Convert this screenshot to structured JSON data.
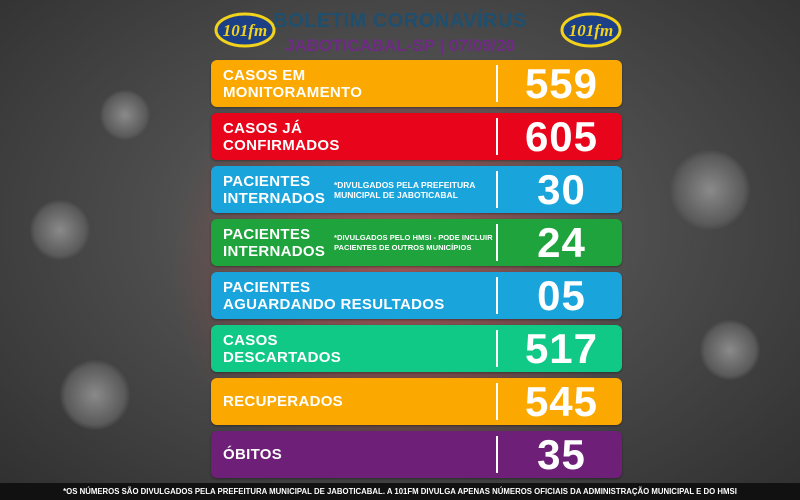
{
  "header": {
    "title": "BOLETIM CORONAVÍRUS",
    "subtitle": "JABOTICABAL-SP | 07/09/20",
    "logo_text": "101fm"
  },
  "colors": {
    "orange": "#fba800",
    "red": "#e8051b",
    "blue": "#1aa4dc",
    "green": "#1fa33c",
    "teal": "#11c987",
    "purple": "#6e1f77"
  },
  "panels": [
    {
      "label": "CASOS EM\nMONITORAMENTO",
      "note": "",
      "value": "559",
      "color": "#fba800"
    },
    {
      "label": "CASOS JÁ\nCONFIRMADOS",
      "note": "",
      "value": "605",
      "color": "#e8051b"
    },
    {
      "label": "PACIENTES\nINTERNADOS",
      "note": "*DIVULGADOS PELA PREFEITURA\nMUNICIPAL DE JABOTICABAL",
      "value": "30",
      "color": "#1aa4dc"
    },
    {
      "label": "PACIENTES\nINTERNADOS",
      "note": "*DIVULGADOS PELO HMSI - PODE INCLUIR\nPACIENTES DE OUTROS MUNICÍPIOS",
      "value": "24",
      "color": "#1fa33c"
    },
    {
      "label": "PACIENTES\nAGUARDANDO RESULTADOS",
      "note": "",
      "value": "05",
      "color": "#1aa4dc"
    },
    {
      "label": "CASOS\nDESCARTADOS",
      "note": "",
      "value": "517",
      "color": "#11c987"
    },
    {
      "label": "RECUPERADOS",
      "note": "",
      "value": "545",
      "color": "#fba800"
    },
    {
      "label": "ÓBITOS",
      "note": "",
      "value": "35",
      "color": "#6e1f77"
    }
  ],
  "footer": {
    "text": "*OS NÚMEROS SÃO DIVULGADOS PELA PREFEITURA MUNICIPAL DE JABOTICABAL. A 101FM DIVULGA APENAS NÚMEROS OFICIAIS DA ADMINISTRAÇÃO MUNICIPAL E DO HMSI"
  }
}
